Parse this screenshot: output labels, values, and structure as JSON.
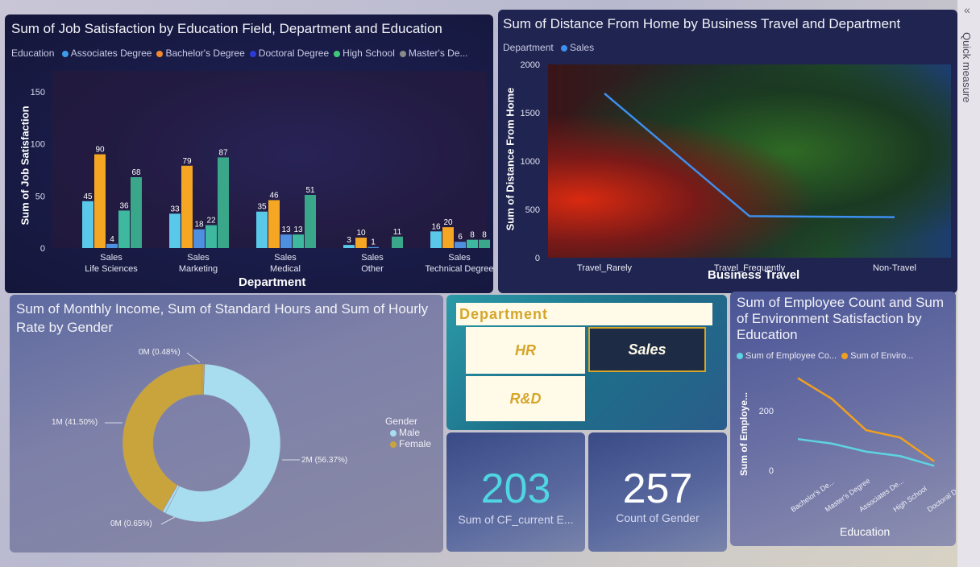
{
  "job_chart": {
    "title": "Sum of Job Satisfaction by Education Field, Department and Education",
    "legend_title": "Education",
    "legend": [
      {
        "label": "Associates Degree",
        "color": "#3d9be8"
      },
      {
        "label": "Bachelor's Degree",
        "color": "#f08a2c"
      },
      {
        "label": "Doctoral Degree",
        "color": "#2a3bd6"
      },
      {
        "label": "High School",
        "color": "#3fc77a"
      },
      {
        "label": "Master's De...",
        "color": "#8a8a8a"
      }
    ],
    "xlabel": "Department",
    "ylabel": "Sum of Job Satisfaction",
    "yticks": [
      "0",
      "50",
      "100",
      "150"
    ]
  },
  "distance_chart": {
    "title": "Sum of Distance From Home by Business Travel and Department",
    "legend_title": "Department",
    "legend": [
      {
        "label": "Sales",
        "color": "#3d8ff0"
      }
    ],
    "xlabel": "Business Travel",
    "ylabel": "Sum of Distance From Home",
    "yticks": [
      "0",
      "500",
      "1000",
      "1500",
      "2000"
    ]
  },
  "income_chart": {
    "title_line1": "Sum of Monthly Income, Sum of Standard Hours and Sum of Hourly",
    "title_line2": "Rate by Gender",
    "legend_title": "Gender",
    "legend": [
      {
        "label": "Male",
        "color": "#a8dcef"
      },
      {
        "label": "Female",
        "color": "#c9a43d"
      }
    ],
    "labels": {
      "top": "0M (0.48%)",
      "left": "1M (41.50%)",
      "right": "2M (56.37%)",
      "bottom": "0M (0.65%)"
    }
  },
  "slicer": {
    "title": "Department",
    "items": [
      {
        "label": "HR",
        "selected": false
      },
      {
        "label": "Sales",
        "selected": true
      },
      {
        "label": "R&D",
        "selected": false
      }
    ]
  },
  "kpi1": {
    "value": "203",
    "label": "Sum of CF_current E..."
  },
  "kpi2": {
    "value": "257",
    "label": "Count of Gender"
  },
  "emp_chart": {
    "title_line1": "Sum of Employee Count and Sum",
    "title_line2": "of Environment Satisfaction by",
    "title_line3": "Education",
    "legend": [
      {
        "label": "Sum of Employee Co...",
        "color": "#5fd3e0"
      },
      {
        "label": "Sum of Enviro...",
        "color": "#f0a020"
      }
    ],
    "ylabel": "Sum of Employe...",
    "xlabel": "Education",
    "yticks": [
      "0",
      "200"
    ]
  },
  "side_pane": {
    "label": "Quick measure",
    "collapse_icon": "chevrons-left-icon"
  },
  "chart_data": [
    {
      "type": "bar",
      "title": "Sum of Job Satisfaction by Education Field, Department and Education",
      "xlabel": "Department",
      "ylabel": "Sum of Job Satisfaction",
      "ylim": [
        0,
        170
      ],
      "categories": [
        [
          "Sales",
          "Life Sciences"
        ],
        [
          "Sales",
          "Marketing"
        ],
        [
          "Sales",
          "Medical"
        ],
        [
          "Sales",
          "Other"
        ],
        [
          "Sales",
          "Technical Degree"
        ]
      ],
      "series": [
        {
          "name": "Associates Degree",
          "color": "#5ac8e8",
          "values": [
            45,
            33,
            35,
            3,
            16
          ]
        },
        {
          "name": "Bachelor's Degree",
          "color": "#f5a623",
          "values": [
            90,
            79,
            46,
            10,
            20
          ]
        },
        {
          "name": "Doctoral Degree",
          "color": "#4f8fe0",
          "values": [
            4,
            18,
            13,
            1,
            6
          ]
        },
        {
          "name": "High School",
          "color": "#3fb8a0",
          "values": [
            36,
            22,
            13,
            0,
            8
          ]
        },
        {
          "name": "Master's De...",
          "color": "#3aa78a",
          "values": [
            68,
            87,
            51,
            11,
            8
          ]
        }
      ]
    },
    {
      "type": "line",
      "title": "Sum of Distance From Home by Business Travel and Department",
      "xlabel": "Business Travel",
      "ylabel": "Sum of Distance From Home",
      "ylim": [
        0,
        2000
      ],
      "categories": [
        "Travel_Rarely",
        "Travel_Frequently",
        "Non-Travel"
      ],
      "series": [
        {
          "name": "Sales",
          "color": "#3d8ff0",
          "values": [
            1700,
            430,
            420
          ]
        }
      ]
    },
    {
      "type": "pie",
      "title": "Sum of Monthly Income, Sum of Standard Hours and Sum of Hourly Rate by Gender",
      "slices": [
        {
          "label": "2M (56.37%)",
          "value": 56.37,
          "color": "#a8dcef"
        },
        {
          "label": "0M (0.65%)",
          "value": 0.65,
          "color": "#a8dcef"
        },
        {
          "label": "1M (41.50%)",
          "value": 41.5,
          "color": "#c9a43d"
        },
        {
          "label": "0M (0.48%)",
          "value": 0.48,
          "color": "#c9a43d"
        }
      ]
    },
    {
      "type": "line",
      "title": "Sum of Employee Count and Sum of Environment Satisfaction by Education",
      "xlabel": "Education",
      "ylabel": "Sum of Employe...",
      "ylim": [
        0,
        330
      ],
      "categories": [
        "Bachelor's De...",
        "Master's Degree",
        "Associates De...",
        "High School",
        "Doctoral Degree"
      ],
      "series": [
        {
          "name": "Sum of Employee Co...",
          "color": "#5fd3e0",
          "values": [
            105,
            90,
            63,
            48,
            15
          ]
        },
        {
          "name": "Sum of Enviro...",
          "color": "#f0a020",
          "values": [
            310,
            240,
            135,
            110,
            30
          ]
        }
      ]
    }
  ]
}
